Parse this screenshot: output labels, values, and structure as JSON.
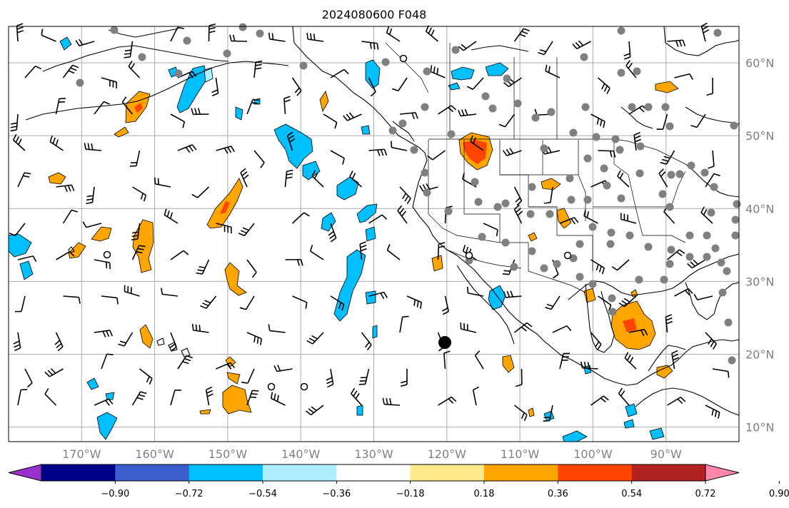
{
  "title": "2024080600 F048",
  "map": {
    "projection": "PlateCarree",
    "lon_range": [
      -180,
      -80
    ],
    "lat_range": [
      8,
      65
    ],
    "lat_labels": [
      "60°N",
      "50°N",
      "40°N",
      "30°N",
      "20°N",
      "10°N"
    ],
    "lat_values": [
      60,
      50,
      40,
      30,
      20,
      10
    ],
    "lon_labels": [
      "170°W",
      "160°W",
      "150°W",
      "140°W",
      "130°W",
      "120°W",
      "110°W",
      "100°W",
      "90°W"
    ],
    "lon_values": [
      -170,
      -160,
      -150,
      -140,
      -130,
      -120,
      -110,
      -100,
      -90
    ],
    "gridlines": true,
    "fields": [
      {
        "name": "shaded field",
        "style": "filled contours"
      },
      {
        "name": "wind",
        "style": "barbs"
      },
      {
        "name": "stations",
        "style": "gray dots"
      }
    ]
  },
  "colorbar": {
    "extend": "both",
    "tick_labels": [
      "−0.90",
      "−0.72",
      "−0.54",
      "−0.36",
      "−0.18",
      "0.18",
      "0.36",
      "0.54",
      "0.72",
      "0.90"
    ],
    "colors": [
      "#9932cc",
      "#00008b",
      "#3a5fcd",
      "#00bfff",
      "#afeeff",
      "#ffffff",
      "#fde98a",
      "#ffa500",
      "#ff4500",
      "#b22222",
      "#ff88aa"
    ]
  }
}
